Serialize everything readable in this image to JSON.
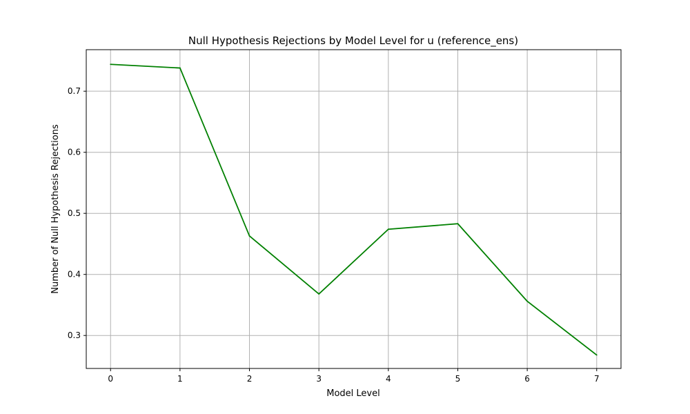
{
  "chart_data": {
    "type": "line",
    "title": "Null Hypothesis Rejections by Model Level for u (reference_ens)",
    "xlabel": "Model Level",
    "ylabel": "Number of Null Hypothesis Rejections",
    "x": [
      0,
      1,
      2,
      3,
      4,
      5,
      6,
      7
    ],
    "xticks": [
      "0",
      "1",
      "2",
      "3",
      "4",
      "5",
      "6",
      "7"
    ],
    "yticks": [
      "0.3",
      "0.4",
      "0.5",
      "0.6",
      "0.7"
    ],
    "xlim": [
      -0.35,
      7.35
    ],
    "ylim": [
      0.246,
      0.768
    ],
    "grid": true,
    "series": [
      {
        "values": [
          0.744,
          0.738,
          0.463,
          0.368,
          0.474,
          0.483,
          0.356,
          0.268
        ],
        "color": "#008000"
      }
    ]
  }
}
